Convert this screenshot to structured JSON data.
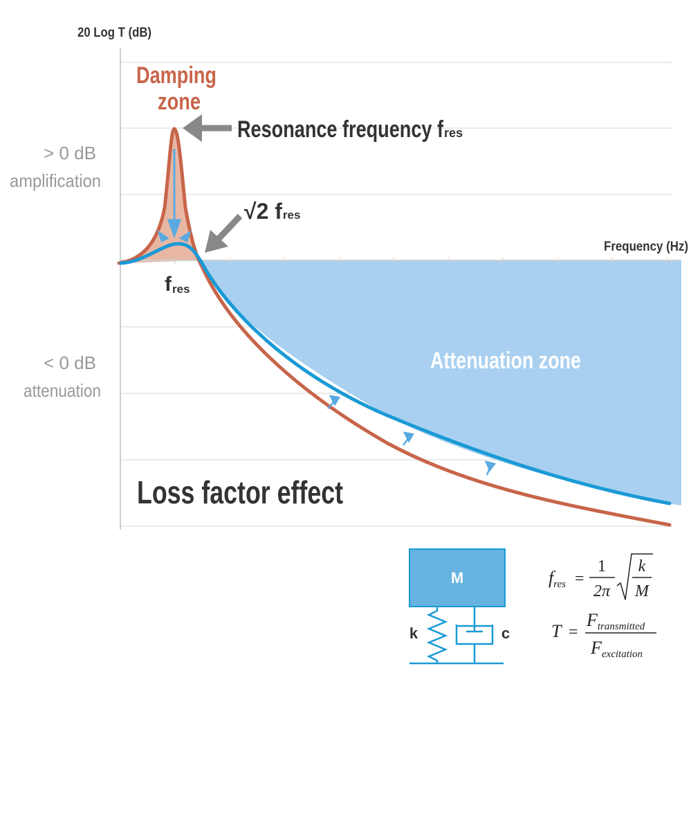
{
  "y_axis_label": "20 Log T (dB)",
  "x_axis_label": "Frequency (Hz)",
  "amplification_label": {
    "line1": "> 0 dB",
    "line2": "amplification"
  },
  "attenuation_label": {
    "line1": "< 0 dB",
    "line2": "attenuation"
  },
  "damping_zone": {
    "line1": "Damping",
    "line2": "zone"
  },
  "resonance_callout": {
    "text": "Resonance frequency f",
    "sub": "res"
  },
  "sqrt2_callout": {
    "text": "√2 f",
    "sub": "res"
  },
  "fres_tick": {
    "text": "f",
    "sub": "res"
  },
  "attenuation_zone": "Attenuation zone",
  "loss_factor_title": "Loss factor effect",
  "colors": {
    "low_damping": "#c8654a",
    "high_damping": "#1a9ad6",
    "attenuation_fill": "#a9d0f0",
    "damping_fill": "#e8b7a4",
    "arrow_gray": "#888888",
    "mass_fill": "#66b3e1",
    "mechanics_stroke": "#1a9ad6"
  },
  "model": {
    "mass_label": "M",
    "spring_label": "k",
    "damper_label": "c"
  },
  "formula_fres": {
    "lhs": "f",
    "lhs_sub": "res",
    "eq": "=",
    "num": "1",
    "den": "2π",
    "root_num": "k",
    "root_den": "M"
  },
  "formula_T": {
    "lhs": "T",
    "eq": "=",
    "num": "F",
    "num_sub": "transmitted",
    "den": "F",
    "den_sub": "excitation"
  }
}
